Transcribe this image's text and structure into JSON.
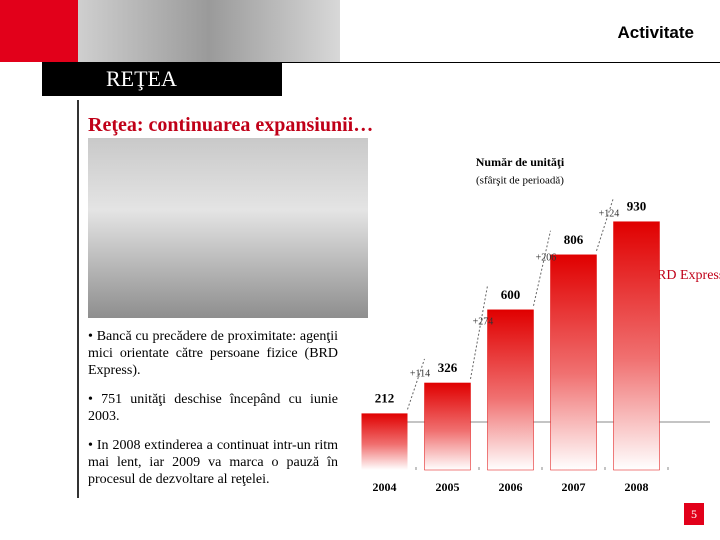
{
  "header": {
    "section": "Activitate",
    "section_title": "REŢEA"
  },
  "slide_title": "Reţea: continuarea expansiunii…",
  "bullets": [
    "•  Bancă cu precădere de proximitate: agenţii mici orientate către persoane fizice (BRD Express).",
    "• 751 unităţi deschise începând cu iunie 2003.",
    "• In 2008 extinderea a continuat intr-un ritm mai lent, iar 2009 va marca o pauză în procesul de dezvoltare al reţelei."
  ],
  "page_number": "5",
  "chart_data": {
    "type": "bar",
    "title": "Număr de unităţi",
    "subtitle": "(sfârşit de perioadă)",
    "categories": [
      "2004",
      "2005",
      "2006",
      "2007",
      "2008"
    ],
    "series": [
      {
        "name": "BRD Express",
        "color": "#e00000",
        "values": [
          212,
          326,
          600,
          806,
          930
        ]
      }
    ],
    "annotations": [
      "+114",
      "+274",
      "+206",
      "+124"
    ],
    "ylim": [
      0,
      1000
    ]
  }
}
